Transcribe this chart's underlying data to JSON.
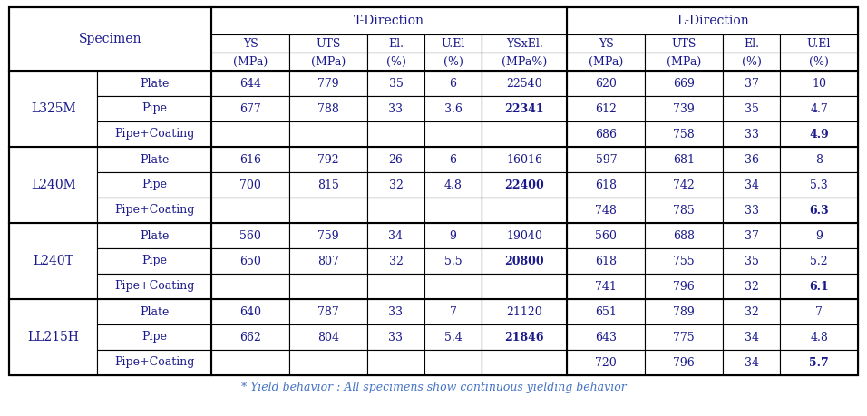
{
  "title_note": "* Yield behavior : All specimens show continuous yielding behavior",
  "groups": [
    {
      "name": "L325M",
      "rows": [
        {
          "spec": "Plate",
          "t_ys": "644",
          "t_uts": "779",
          "t_el": "35",
          "t_uel": "6",
          "t_ysxel": "22540",
          "l_ys": "620",
          "l_uts": "669",
          "l_el": "37",
          "l_uel": "10"
        },
        {
          "spec": "Pipe",
          "t_ys": "677",
          "t_uts": "788",
          "t_el": "33",
          "t_uel": "3.6",
          "t_ysxel": "22341",
          "l_ys": "612",
          "l_uts": "739",
          "l_el": "35",
          "l_uel": "4.7"
        },
        {
          "spec": "Pipe+Coating",
          "t_ys": "",
          "t_uts": "",
          "t_el": "",
          "t_uel": "",
          "t_ysxel": "",
          "l_ys": "686",
          "l_uts": "758",
          "l_el": "33",
          "l_uel": "4.9"
        }
      ]
    },
    {
      "name": "L240M",
      "rows": [
        {
          "spec": "Plate",
          "t_ys": "616",
          "t_uts": "792",
          "t_el": "26",
          "t_uel": "6",
          "t_ysxel": "16016",
          "l_ys": "597",
          "l_uts": "681",
          "l_el": "36",
          "l_uel": "8"
        },
        {
          "spec": "Pipe",
          "t_ys": "700",
          "t_uts": "815",
          "t_el": "32",
          "t_uel": "4.8",
          "t_ysxel": "22400",
          "l_ys": "618",
          "l_uts": "742",
          "l_el": "34",
          "l_uel": "5.3"
        },
        {
          "spec": "Pipe+Coating",
          "t_ys": "",
          "t_uts": "",
          "t_el": "",
          "t_uel": "",
          "t_ysxel": "",
          "l_ys": "748",
          "l_uts": "785",
          "l_el": "33",
          "l_uel": "6.3"
        }
      ]
    },
    {
      "name": "L240T",
      "rows": [
        {
          "spec": "Plate",
          "t_ys": "560",
          "t_uts": "759",
          "t_el": "34",
          "t_uel": "9",
          "t_ysxel": "19040",
          "l_ys": "560",
          "l_uts": "688",
          "l_el": "37",
          "l_uel": "9"
        },
        {
          "spec": "Pipe",
          "t_ys": "650",
          "t_uts": "807",
          "t_el": "32",
          "t_uel": "5.5",
          "t_ysxel": "20800",
          "l_ys": "618",
          "l_uts": "755",
          "l_el": "35",
          "l_uel": "5.2"
        },
        {
          "spec": "Pipe+Coating",
          "t_ys": "",
          "t_uts": "",
          "t_el": "",
          "t_uel": "",
          "t_ysxel": "",
          "l_ys": "741",
          "l_uts": "796",
          "l_el": "32",
          "l_uel": "6.1"
        }
      ]
    },
    {
      "name": "LL215H",
      "rows": [
        {
          "spec": "Plate",
          "t_ys": "640",
          "t_uts": "787",
          "t_el": "33",
          "t_uel": "7",
          "t_ysxel": "21120",
          "l_ys": "651",
          "l_uts": "789",
          "l_el": "32",
          "l_uel": "7"
        },
        {
          "spec": "Pipe",
          "t_ys": "662",
          "t_uts": "804",
          "t_el": "33",
          "t_uel": "5.4",
          "t_ysxel": "21846",
          "l_ys": "643",
          "l_uts": "775",
          "l_el": "34",
          "l_uel": "4.8"
        },
        {
          "spec": "Pipe+Coating",
          "t_ys": "",
          "t_uts": "",
          "t_el": "",
          "t_uel": "",
          "t_ysxel": "",
          "l_ys": "720",
          "l_uts": "796",
          "l_el": "34",
          "l_uel": "5.7"
        }
      ]
    }
  ],
  "bold_values": [
    "22341",
    "22400",
    "20800",
    "21846",
    "4.9",
    "6.3",
    "6.1",
    "5.7"
  ],
  "sub_headers": [
    "YS",
    "UTS",
    "El.",
    "U.El",
    "YSxEl.",
    "YS",
    "UTS",
    "El.",
    "U.El"
  ],
  "sub_units": [
    "(MPa)",
    "(MPa)",
    "(%)",
    "(%)",
    "(MPa%)",
    "(MPa)",
    "(MPa)",
    "(%)",
    "(%)"
  ],
  "note_color": "#4472c4",
  "text_color": "#1a1a8c",
  "border_color": "#000000",
  "fig_width": 9.56,
  "fig_height": 4.59,
  "dpi": 100
}
